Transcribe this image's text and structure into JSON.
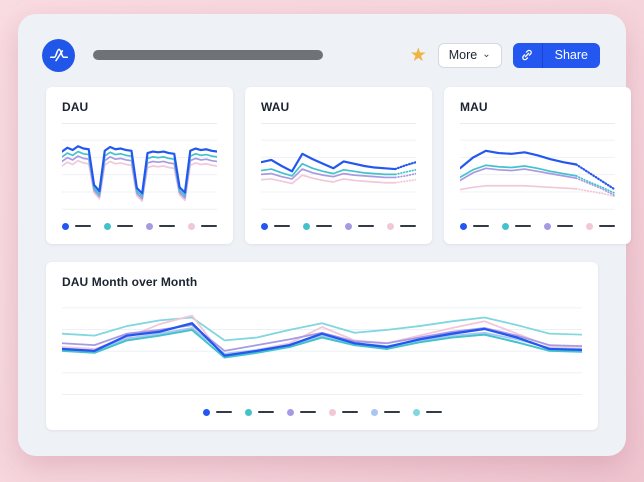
{
  "colors": {
    "accent_blue": "#2456f0",
    "grid": "#eef0f4",
    "legend_dash": "#323a46",
    "title_bar": "#6e7377",
    "star": "#efb544"
  },
  "header": {
    "star_icon": "★",
    "more_label": "More",
    "more_caret": "⌄",
    "share_label": "Share"
  },
  "chart_data": [
    {
      "type": "line",
      "title": "DAU",
      "x_axis": "hidden",
      "y_axis": "hidden",
      "ylim": [
        0,
        100
      ],
      "legend": [
        "#2457f0",
        "#44c2cc",
        "#a79ae2",
        "#f2c7d9"
      ],
      "dash_pattern": "0.7 2.2",
      "series": [
        {
          "name": "pink",
          "color": "#f2c7d9",
          "width": 1.7,
          "dotted_from": null,
          "values": [
            55,
            60,
            57,
            62,
            59,
            58,
            20,
            12,
            56,
            61,
            58,
            59,
            57,
            56,
            16,
            9,
            53,
            55,
            54,
            55,
            53,
            52,
            17,
            10,
            56,
            59,
            57,
            58,
            56,
            55
          ]
        },
        {
          "name": "purple",
          "color": "#a79ae2",
          "width": 1.7,
          "dotted_from": null,
          "values": [
            61,
            66,
            63,
            68,
            65,
            64,
            23,
            15,
            62,
            67,
            64,
            65,
            63,
            62,
            19,
            12,
            59,
            61,
            60,
            61,
            59,
            58,
            20,
            13,
            62,
            65,
            63,
            64,
            62,
            61
          ]
        },
        {
          "name": "teal",
          "color": "#44c2cc",
          "width": 1.7,
          "dotted_from": null,
          "values": [
            67,
            72,
            69,
            74,
            71,
            70,
            26,
            18,
            68,
            73,
            70,
            71,
            69,
            68,
            22,
            15,
            65,
            67,
            66,
            67,
            65,
            64,
            23,
            16,
            68,
            71,
            69,
            70,
            68,
            67
          ]
        },
        {
          "name": "blue",
          "color": "#2457f0",
          "width": 2.2,
          "dotted_from": null,
          "values": [
            74,
            79,
            76,
            81,
            78,
            77,
            30,
            22,
            75,
            80,
            77,
            78,
            76,
            75,
            26,
            19,
            72,
            74,
            73,
            74,
            72,
            71,
            27,
            20,
            75,
            78,
            76,
            77,
            75,
            74
          ]
        }
      ]
    },
    {
      "type": "line",
      "title": "WAU",
      "x_axis": "hidden",
      "y_axis": "hidden",
      "ylim": [
        0,
        100
      ],
      "legend": [
        "#2457f0",
        "#44c2cc",
        "#a79ae2",
        "#f2c7d9"
      ],
      "dash_pattern": "0.7 2.2",
      "series": [
        {
          "name": "pink",
          "color": "#f2c7d9",
          "width": 1.7,
          "dotted_from": 13,
          "values": [
            37,
            38,
            35,
            32,
            43,
            39,
            36,
            34,
            38,
            36,
            35,
            34,
            33,
            33,
            35,
            37
          ]
        },
        {
          "name": "purple",
          "color": "#a79ae2",
          "width": 1.7,
          "dotted_from": 13,
          "values": [
            44,
            45,
            41,
            38,
            51,
            46,
            43,
            41,
            45,
            43,
            42,
            41,
            40,
            40,
            42,
            45
          ]
        },
        {
          "name": "teal",
          "color": "#44c2cc",
          "width": 1.7,
          "dotted_from": 13,
          "values": [
            49,
            51,
            46,
            42,
            58,
            52,
            48,
            45,
            50,
            48,
            46,
            45,
            44,
            44,
            47,
            50
          ]
        },
        {
          "name": "blue",
          "color": "#2457f0",
          "width": 2.2,
          "dotted_from": 13,
          "values": [
            60,
            63,
            55,
            48,
            71,
            64,
            58,
            52,
            61,
            58,
            55,
            53,
            52,
            51,
            56,
            60
          ]
        }
      ]
    },
    {
      "type": "line",
      "title": "MAU",
      "x_axis": "hidden",
      "y_axis": "hidden",
      "ylim": [
        0,
        100
      ],
      "legend": [
        "#2457f0",
        "#44c2cc",
        "#a79ae2",
        "#f2c7d9"
      ],
      "dash_pattern": "0.7 2.2",
      "series": [
        {
          "name": "pink",
          "color": "#f2c7d9",
          "width": 1.7,
          "dotted_from": 9,
          "values": [
            24,
            27,
            29,
            29,
            29,
            29,
            28,
            27,
            26,
            25,
            22,
            19,
            15
          ]
        },
        {
          "name": "purple",
          "color": "#a79ae2",
          "width": 1.7,
          "dotted_from": 9,
          "values": [
            36,
            46,
            52,
            50,
            49,
            51,
            48,
            45,
            42,
            39,
            32,
            25,
            16
          ]
        },
        {
          "name": "teal",
          "color": "#44c2cc",
          "width": 1.7,
          "dotted_from": 9,
          "values": [
            40,
            50,
            56,
            54,
            53,
            55,
            52,
            48,
            45,
            42,
            34,
            27,
            19
          ]
        },
        {
          "name": "blue",
          "color": "#2457f0",
          "width": 2.2,
          "dotted_from": 9,
          "values": [
            52,
            66,
            75,
            72,
            71,
            73,
            69,
            64,
            60,
            57,
            46,
            35,
            24
          ]
        }
      ]
    },
    {
      "type": "line",
      "title": "DAU Month over Month",
      "x_axis": "hidden",
      "y_axis": "hidden",
      "ylim": [
        0,
        100
      ],
      "legend": [
        "#2457f0",
        "#44c2cc",
        "#a79ae2",
        "#f2c7d9",
        "#a9c6f2",
        "#7fd7df"
      ],
      "dash_pattern": "0.3 1.1",
      "series": [
        {
          "name": "light-teal",
          "color": "#7fd7df",
          "width": 1.8,
          "dotted_from": 14,
          "values": [
            62,
            60,
            70,
            76,
            79,
            55,
            58,
            66,
            73,
            63,
            66,
            70,
            75,
            79,
            71,
            62,
            61
          ]
        },
        {
          "name": "pink",
          "color": "#f2c7d9",
          "width": 1.8,
          "dotted_from": 14,
          "values": [
            48,
            46,
            58,
            72,
            81,
            37,
            45,
            52,
            69,
            55,
            52,
            60,
            68,
            75,
            62,
            49,
            48
          ]
        },
        {
          "name": "purple",
          "color": "#a79ae2",
          "width": 1.8,
          "dotted_from": 14,
          "values": [
            52,
            50,
            62,
            66,
            71,
            44,
            50,
            56,
            63,
            54,
            52,
            58,
            64,
            68,
            60,
            50,
            49
          ]
        },
        {
          "name": "light-blue",
          "color": "#a9c6f2",
          "width": 1.8,
          "dotted_from": 14,
          "values": [
            45,
            44,
            57,
            62,
            68,
            41,
            45,
            50,
            60,
            52,
            49,
            55,
            60,
            63,
            56,
            47,
            46
          ]
        },
        {
          "name": "teal",
          "color": "#44c2cc",
          "width": 2.0,
          "dotted_from": 14,
          "values": [
            44,
            42,
            55,
            60,
            66,
            37,
            42,
            48,
            58,
            50,
            46,
            53,
            58,
            61,
            53,
            44,
            43
          ]
        },
        {
          "name": "blue",
          "color": "#2457f0",
          "width": 2.3,
          "dotted_from": 14,
          "values": [
            46,
            44,
            60,
            64,
            73,
            39,
            44,
            50,
            62,
            52,
            48,
            56,
            62,
            67,
            58,
            46,
            45
          ]
        }
      ]
    }
  ]
}
